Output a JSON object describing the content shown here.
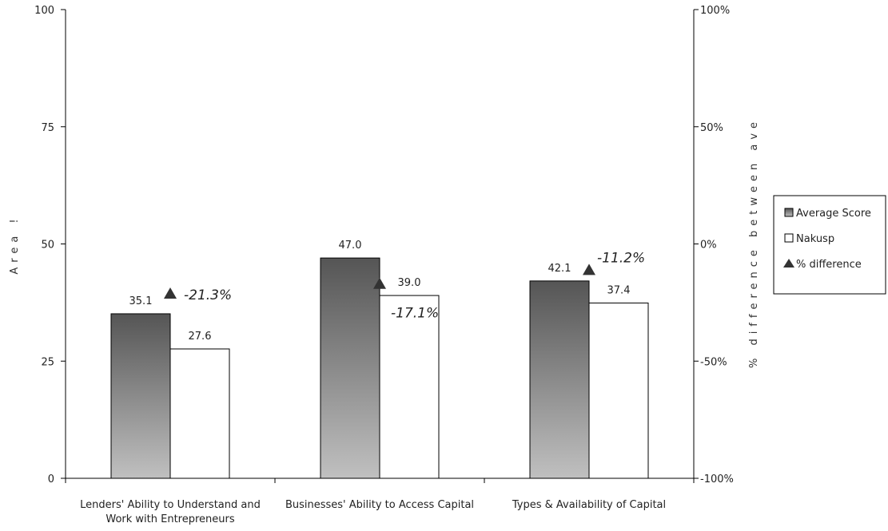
{
  "chart_data": {
    "type": "bar",
    "categories": [
      [
        "Lenders' Ability to Understand and",
        "Work with Entrepreneurs"
      ],
      [
        "Businesses' Ability to Access Capital"
      ],
      [
        "Types & Availability of Capital"
      ]
    ],
    "series": [
      {
        "name": "Average Score",
        "values": [
          35.1,
          47.0,
          42.1
        ],
        "value_labels": [
          "35.1",
          "47.0",
          "42.1"
        ]
      },
      {
        "name": "Nakusp",
        "values": [
          27.6,
          39.0,
          37.4
        ],
        "value_labels": [
          "27.6",
          "39.0",
          "37.4"
        ]
      }
    ],
    "difference_series": {
      "name": "% difference",
      "values": [
        -21.3,
        -17.1,
        -11.2
      ],
      "labels": [
        "-21.3%",
        "-17.1%",
        "-11.2%"
      ]
    },
    "ylabel": "Area !",
    "y2label": "% difference between ave",
    "ylim": [
      0,
      100
    ],
    "yticks": [
      "0",
      "25",
      "50",
      "75",
      "100"
    ],
    "y2lim": [
      -100,
      100
    ],
    "y2ticks": [
      "-100%",
      "-50%",
      "0%",
      "50%",
      "100%"
    ],
    "legend": [
      "Average Score",
      "Nakusp",
      "% difference"
    ],
    "legend_position": "right",
    "grid": false,
    "colors": {
      "average_top": "#555555",
      "average_bottom": "#c0c0c0",
      "nakusp": "#ffffff",
      "marker": "#333333"
    }
  }
}
